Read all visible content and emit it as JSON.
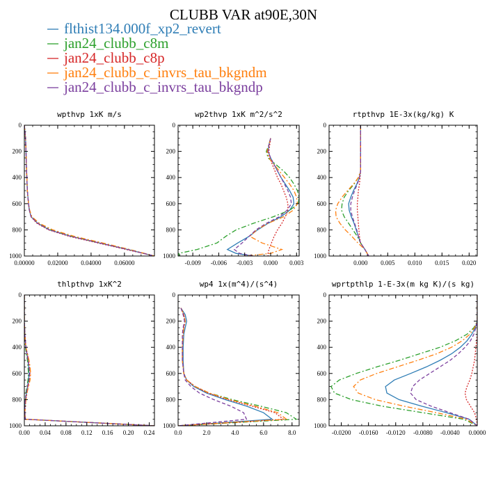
{
  "figure": {
    "title": "CLUBB VAR at90E,30N"
  },
  "legend": [
    {
      "name": "flthist134.000f_xp2_revert",
      "color": "#2e7db5",
      "dash": "solid"
    },
    {
      "name": "jan24_clubb_c8m",
      "color": "#2ca02c",
      "dash": "dashdot"
    },
    {
      "name": "jan24_clubb_c8p",
      "color": "#d62728",
      "dash": "dotted"
    },
    {
      "name": "jan24_clubb_c_invrs_tau_bkgndm",
      "color": "#ff7f0e",
      "dash": "dashdot"
    },
    {
      "name": "jan24_clubb_c_invrs_tau_bkgndp",
      "color": "#7b3f9e",
      "dash": "dashed"
    }
  ],
  "chart_data": [
    {
      "type": "line",
      "title": "wpthvp  1xK m/s",
      "xlim": [
        0,
        0.078
      ],
      "ylim": [
        1000,
        0
      ],
      "xticks": [
        0.0,
        0.02,
        0.04,
        0.06
      ],
      "xtick_labels": [
        "0.00000",
        "0.02000",
        "0.04000",
        "0.06000"
      ],
      "yticks": [
        0,
        200,
        400,
        600,
        800,
        1000
      ],
      "ytick_labels": [
        "0",
        "200",
        "400",
        "600",
        "800",
        "1000"
      ],
      "y": [
        0,
        100,
        200,
        300,
        400,
        500,
        600,
        650,
        700,
        750,
        800,
        850,
        900,
        950,
        1000
      ],
      "series": [
        {
          "values": [
            0.0,
            0.0007,
            0.001,
            0.0012,
            0.0015,
            0.0018,
            0.0025,
            0.003,
            0.004,
            0.008,
            0.015,
            0.028,
            0.045,
            0.062,
            0.078
          ]
        },
        {
          "values": [
            0.0,
            0.0007,
            0.001,
            0.0012,
            0.0015,
            0.0018,
            0.0025,
            0.003,
            0.0045,
            0.009,
            0.016,
            0.029,
            0.046,
            0.063,
            0.078
          ]
        },
        {
          "values": [
            0.0,
            0.0007,
            0.001,
            0.0012,
            0.0015,
            0.0018,
            0.0025,
            0.003,
            0.004,
            0.0075,
            0.0145,
            0.027,
            0.044,
            0.061,
            0.078
          ]
        },
        {
          "values": [
            0.0,
            0.0007,
            0.001,
            0.0012,
            0.0015,
            0.0018,
            0.0025,
            0.0032,
            0.0045,
            0.009,
            0.017,
            0.03,
            0.047,
            0.063,
            0.078
          ]
        },
        {
          "values": [
            0.0,
            0.0007,
            0.001,
            0.0012,
            0.0015,
            0.0018,
            0.0025,
            0.003,
            0.004,
            0.008,
            0.015,
            0.028,
            0.045,
            0.062,
            0.078
          ]
        }
      ]
    },
    {
      "type": "line",
      "title": "wp2thvp  1xK m^2/s^2",
      "xlim": [
        -0.0107,
        0.0033
      ],
      "ylim": [
        1000,
        0
      ],
      "xticks": [
        -0.009,
        -0.006,
        -0.003,
        0.0,
        0.003
      ],
      "xtick_labels": [
        "-0.009",
        "-0.006",
        "-0.003",
        "0.000",
        "0.003"
      ],
      "yticks": [
        0,
        200,
        400,
        600,
        800,
        1000
      ],
      "ytick_labels": [
        "0",
        "200",
        "400",
        "600",
        "800",
        "1000"
      ],
      "y": [
        100,
        150,
        200,
        250,
        300,
        350,
        400,
        450,
        500,
        550,
        600,
        650,
        700,
        750,
        800,
        850,
        900,
        950,
        980,
        1000
      ],
      "series": [
        {
          "values": [
            0.0,
            -0.0002,
            -0.0003,
            0.0,
            0.0004,
            0.0008,
            0.0012,
            0.0017,
            0.0022,
            0.0026,
            0.0027,
            0.0022,
            0.0012,
            -0.0003,
            -0.0015,
            -0.0025,
            -0.0038,
            -0.005,
            -0.004,
            -0.002
          ]
        },
        {
          "values": [
            0.0,
            -0.0002,
            -0.0005,
            -0.0003,
            0.0006,
            0.0015,
            0.0022,
            0.0027,
            0.0031,
            0.0033,
            0.0032,
            0.0022,
            0.0003,
            -0.002,
            -0.004,
            -0.0052,
            -0.0062,
            -0.0085,
            -0.0106,
            -0.0106
          ]
        },
        {
          "values": [
            0.0,
            -0.0001,
            -0.0002,
            -0.0001,
            0.0002,
            0.0005,
            0.0008,
            0.0012,
            0.0015,
            0.0018,
            0.002,
            0.002,
            0.0017,
            0.0013,
            0.0008,
            0.0004,
            0.0001,
            -0.0002,
            -0.0003,
            -0.0003
          ]
        },
        {
          "values": [
            0.0,
            -0.0002,
            -0.0004,
            -0.0002,
            0.0004,
            0.001,
            0.0016,
            0.0022,
            0.0027,
            0.003,
            0.0031,
            0.0026,
            0.0015,
            -0.0003,
            -0.0016,
            -0.0024,
            -0.001,
            0.0013,
            0.0,
            -0.003
          ]
        },
        {
          "values": [
            0.0,
            -0.0002,
            -0.0003,
            0.0,
            0.0004,
            0.0008,
            0.0012,
            0.0016,
            0.002,
            0.0023,
            0.0024,
            0.0019,
            0.001,
            -0.0005,
            -0.0017,
            -0.0025,
            -0.0033,
            -0.0042,
            -0.0036,
            -0.002
          ]
        }
      ]
    },
    {
      "type": "line",
      "title": "rtpthvp  1E-3x(kg/kg) K",
      "xlim": [
        -0.0058,
        0.0215
      ],
      "ylim": [
        1000,
        0
      ],
      "xticks": [
        0.0,
        0.005,
        0.01,
        0.015,
        0.02
      ],
      "xtick_labels": [
        "0.000",
        "0.005",
        "0.010",
        "0.015",
        "0.020"
      ],
      "yticks": [
        0,
        200,
        400,
        600,
        800,
        1000
      ],
      "ytick_labels": [
        "0",
        "200",
        "400",
        "600",
        "800",
        "1000"
      ],
      "y": [
        0,
        100,
        200,
        300,
        350,
        400,
        450,
        500,
        550,
        600,
        650,
        700,
        750,
        800,
        850,
        900,
        950,
        1000
      ],
      "series": [
        {
          "values": [
            0.0,
            0.0,
            0.0,
            0.0,
            0.0,
            -0.0002,
            -0.0007,
            -0.0013,
            -0.0018,
            -0.0022,
            -0.0021,
            -0.0017,
            -0.0012,
            -0.0008,
            -0.0004,
            0.0,
            0.0008,
            0.0015
          ]
        },
        {
          "values": [
            0.0,
            0.0,
            0.0,
            0.0,
            0.0,
            -0.0004,
            -0.0012,
            -0.0022,
            -0.003,
            -0.0034,
            -0.0035,
            -0.003,
            -0.0022,
            -0.0014,
            -0.0006,
            0.0,
            0.0008,
            0.0015
          ]
        },
        {
          "values": [
            0.0,
            0.0,
            0.0,
            0.0,
            0.0,
            -0.0001,
            -0.0002,
            -0.0004,
            -0.0005,
            -0.0006,
            -0.0006,
            -0.0005,
            -0.0004,
            -0.0003,
            -0.0002,
            0.0,
            0.0008,
            0.0015
          ]
        },
        {
          "values": [
            0.0,
            0.0,
            0.0,
            0.0,
            0.0,
            -0.0004,
            -0.0013,
            -0.0024,
            -0.0034,
            -0.0042,
            -0.0046,
            -0.0045,
            -0.0038,
            -0.0028,
            -0.0016,
            -0.0005,
            0.0008,
            0.0015
          ]
        },
        {
          "values": [
            0.0,
            0.0,
            0.0,
            0.0,
            0.0,
            -0.0002,
            -0.0006,
            -0.0011,
            -0.0015,
            -0.0018,
            -0.0018,
            -0.0015,
            -0.0011,
            -0.0007,
            -0.0004,
            0.0,
            0.0008,
            0.0015
          ]
        }
      ]
    },
    {
      "type": "line",
      "title": "thlpthvp  1xK^2",
      "xlim": [
        0,
        0.25
      ],
      "ylim": [
        1000,
        0
      ],
      "xticks": [
        0.0,
        0.04,
        0.08,
        0.12,
        0.16,
        0.2,
        0.24
      ],
      "xtick_labels": [
        "0.00",
        "0.04",
        "0.08",
        "0.12",
        "0.16",
        "0.20",
        "0.24"
      ],
      "yticks": [
        0,
        200,
        400,
        600,
        800,
        1000
      ],
      "ytick_labels": [
        "0",
        "200",
        "400",
        "600",
        "800",
        "1000"
      ],
      "y": [
        0,
        200,
        300,
        400,
        450,
        500,
        550,
        600,
        650,
        700,
        750,
        800,
        850,
        900,
        950,
        1000
      ],
      "series": [
        {
          "values": [
            0.0,
            0.0,
            0.001,
            0.003,
            0.005,
            0.007,
            0.008,
            0.009,
            0.008,
            0.006,
            0.004,
            0.002,
            0.001,
            0.001,
            0.002,
            0.25
          ]
        },
        {
          "values": [
            0.0,
            0.0,
            0.001,
            0.002,
            0.004,
            0.006,
            0.007,
            0.008,
            0.007,
            0.005,
            0.003,
            0.002,
            0.001,
            0.001,
            0.002,
            0.25
          ]
        },
        {
          "values": [
            0.0,
            0.0,
            0.001,
            0.003,
            0.006,
            0.008,
            0.01,
            0.011,
            0.01,
            0.007,
            0.005,
            0.003,
            0.002,
            0.001,
            0.002,
            0.25
          ]
        },
        {
          "values": [
            0.0,
            0.0,
            0.001,
            0.003,
            0.006,
            0.009,
            0.011,
            0.012,
            0.011,
            0.008,
            0.005,
            0.003,
            0.002,
            0.001,
            0.002,
            0.25
          ]
        },
        {
          "values": [
            0.0,
            0.0,
            0.001,
            0.003,
            0.005,
            0.007,
            0.009,
            0.01,
            0.009,
            0.006,
            0.004,
            0.002,
            0.001,
            0.001,
            0.002,
            0.25
          ]
        }
      ]
    },
    {
      "type": "line",
      "title": "wp4  1x(m^4)/(s^4)",
      "xlim": [
        0,
        8.5
      ],
      "ylim": [
        1000,
        0
      ],
      "xticks": [
        0.0,
        2.0,
        4.0,
        6.0,
        8.0
      ],
      "xtick_labels": [
        "0.0",
        "2.0",
        "4.0",
        "6.0",
        "8.0"
      ],
      "yticks": [
        0,
        200,
        400,
        600,
        800,
        1000
      ],
      "ytick_labels": [
        "0",
        "200",
        "400",
        "600",
        "800",
        "1000"
      ],
      "y": [
        100,
        150,
        200,
        250,
        300,
        400,
        500,
        600,
        650,
        700,
        750,
        800,
        850,
        900,
        950,
        1000
      ],
      "series": [
        {
          "values": [
            0.2,
            0.5,
            0.6,
            0.5,
            0.4,
            0.35,
            0.35,
            0.4,
            0.6,
            1.1,
            2.0,
            3.3,
            4.8,
            6.0,
            6.6,
            0.0
          ]
        },
        {
          "values": [
            0.2,
            0.4,
            0.5,
            0.4,
            0.35,
            0.3,
            0.3,
            0.4,
            0.6,
            1.2,
            2.2,
            3.8,
            5.8,
            7.6,
            8.3,
            0.0
          ]
        },
        {
          "values": [
            0.2,
            0.4,
            0.5,
            0.4,
            0.35,
            0.3,
            0.3,
            0.4,
            0.6,
            1.2,
            2.1,
            3.5,
            5.2,
            6.8,
            7.4,
            0.0
          ]
        },
        {
          "values": [
            0.2,
            0.4,
            0.5,
            0.4,
            0.35,
            0.3,
            0.3,
            0.4,
            0.6,
            1.2,
            2.2,
            3.6,
            5.4,
            7.0,
            7.6,
            0.0
          ]
        },
        {
          "values": [
            0.2,
            0.35,
            0.45,
            0.35,
            0.3,
            0.3,
            0.3,
            0.4,
            0.5,
            0.9,
            1.5,
            2.5,
            3.7,
            4.6,
            4.8,
            0.0
          ]
        }
      ]
    },
    {
      "type": "line",
      "title": "wprtpthlp  1-E-3x(m kg K)/(s kg)",
      "xlim": [
        -0.0218,
        0.0
      ],
      "ylim": [
        1000,
        0
      ],
      "xticks": [
        -0.02,
        -0.016,
        -0.012,
        -0.008,
        -0.004,
        0.0
      ],
      "xtick_labels": [
        "-0.0200",
        "-0.0160",
        "-0.0120",
        "-0.0080",
        "-0.0040",
        "0.0000"
      ],
      "yticks": [
        0,
        200,
        400,
        600,
        800,
        1000
      ],
      "ytick_labels": [
        "0",
        "200",
        "400",
        "600",
        "800",
        "1000"
      ],
      "y": [
        0,
        200,
        250,
        300,
        350,
        400,
        450,
        500,
        550,
        600,
        650,
        700,
        750,
        800,
        850,
        900,
        950,
        1000
      ],
      "series": [
        {
          "values": [
            0.0,
            0.0,
            -0.0003,
            -0.0008,
            -0.0015,
            -0.0025,
            -0.0038,
            -0.0055,
            -0.0075,
            -0.0098,
            -0.0122,
            -0.0135,
            -0.0133,
            -0.0115,
            -0.0082,
            -0.0045,
            -0.0012,
            0.0
          ]
        },
        {
          "values": [
            0.0,
            0.0,
            -0.0005,
            -0.0015,
            -0.0032,
            -0.0055,
            -0.0085,
            -0.0115,
            -0.0148,
            -0.0178,
            -0.0203,
            -0.0215,
            -0.021,
            -0.0185,
            -0.014,
            -0.008,
            -0.002,
            0.0
          ]
        },
        {
          "values": [
            0.0,
            0.0,
            0.0,
            0.0,
            -0.0001,
            -0.0002,
            -0.0003,
            -0.0004,
            -0.0006,
            -0.0008,
            -0.0011,
            -0.0015,
            -0.0018,
            -0.0016,
            -0.001,
            -0.0004,
            -0.0001,
            0.0
          ]
        },
        {
          "values": [
            0.0,
            0.0,
            -0.0004,
            -0.0011,
            -0.0022,
            -0.0038,
            -0.006,
            -0.0088,
            -0.0118,
            -0.0148,
            -0.0172,
            -0.0182,
            -0.0175,
            -0.015,
            -0.0108,
            -0.006,
            -0.0016,
            0.0
          ]
        },
        {
          "values": [
            0.0,
            0.0,
            -0.0002,
            -0.0005,
            -0.001,
            -0.0018,
            -0.0028,
            -0.004,
            -0.0055,
            -0.007,
            -0.0085,
            -0.0095,
            -0.0098,
            -0.009,
            -0.0068,
            -0.004,
            -0.0012,
            0.0
          ]
        }
      ]
    }
  ]
}
